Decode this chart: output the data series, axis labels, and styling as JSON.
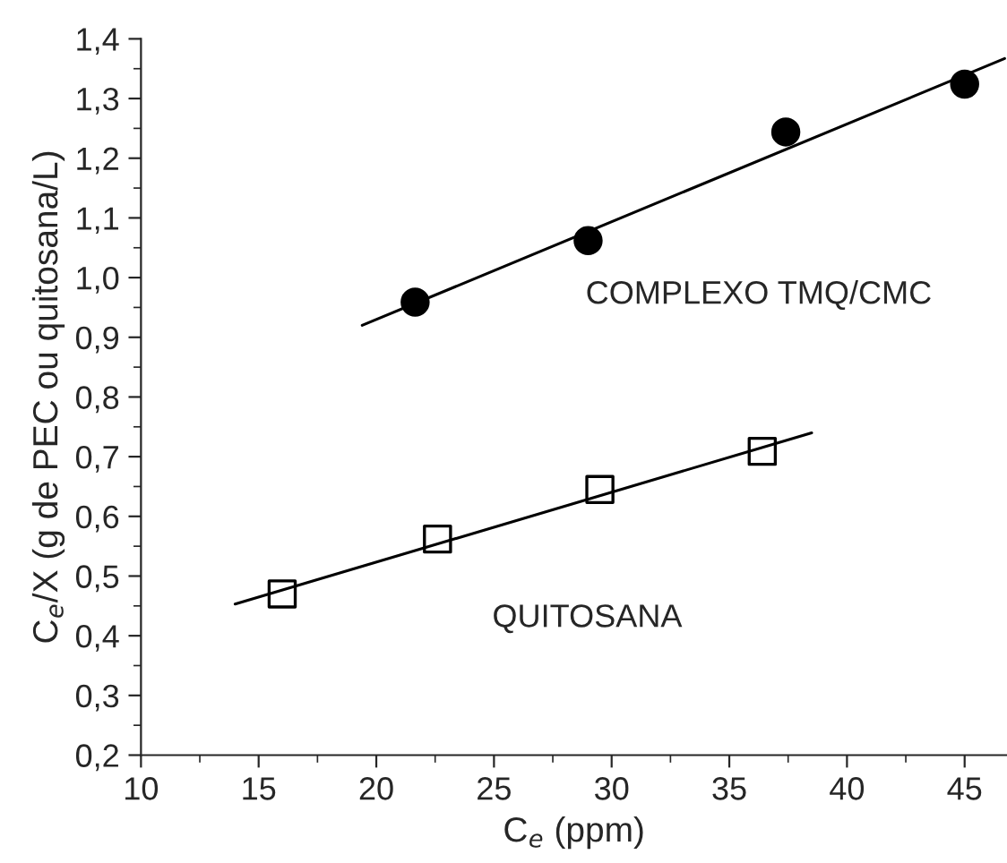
{
  "chart_data": {
    "type": "scatter",
    "xlabel": "C$_{e}$ (ppm)",
    "ylabel": "C$_{e}$/X (g de PEC ou quitosana/L)",
    "xlim": [
      10,
      46.8
    ],
    "ylim": [
      0.2,
      1.4
    ],
    "xticks": [
      10,
      15,
      20,
      25,
      30,
      35,
      40,
      45
    ],
    "yticks": [
      {
        "value": 0.2,
        "label": "0,2"
      },
      {
        "value": 0.3,
        "label": "0,3"
      },
      {
        "value": 0.4,
        "label": "0,4"
      },
      {
        "value": 0.5,
        "label": "0,5"
      },
      {
        "value": 0.6,
        "label": "0,6"
      },
      {
        "value": 0.7,
        "label": "0,7"
      },
      {
        "value": 0.8,
        "label": "0,8"
      },
      {
        "value": 0.9,
        "label": "0,9"
      },
      {
        "value": 1.0,
        "label": "1,0"
      },
      {
        "value": 1.1,
        "label": "1,1"
      },
      {
        "value": 1.2,
        "label": "1,2"
      },
      {
        "value": 1.3,
        "label": "1,3"
      },
      {
        "value": 1.4,
        "label": "1,4"
      }
    ],
    "grid": false,
    "legend": false,
    "series": [
      {
        "name": "COMPLEXO TMQ/CMC",
        "marker": "circle",
        "color": "#000000",
        "x": [
          21.65,
          29.0,
          37.4,
          45.0
        ],
        "values": [
          0.959,
          1.062,
          1.244,
          1.324
        ]
      },
      {
        "type": "line",
        "color": "#000000",
        "x": [
          19.4,
          46.7
        ],
        "values": [
          0.92,
          1.367
        ]
      },
      {
        "name": "QUITOSANA",
        "marker": "square",
        "color": "#000000",
        "x": [
          16.0,
          22.6,
          29.5,
          36.4
        ],
        "values": [
          0.47,
          0.562,
          0.645,
          0.709
        ]
      },
      {
        "type": "line",
        "color": "#000000",
        "x": [
          14.0,
          38.5
        ],
        "values": [
          0.453,
          0.74
        ]
      }
    ]
  }
}
